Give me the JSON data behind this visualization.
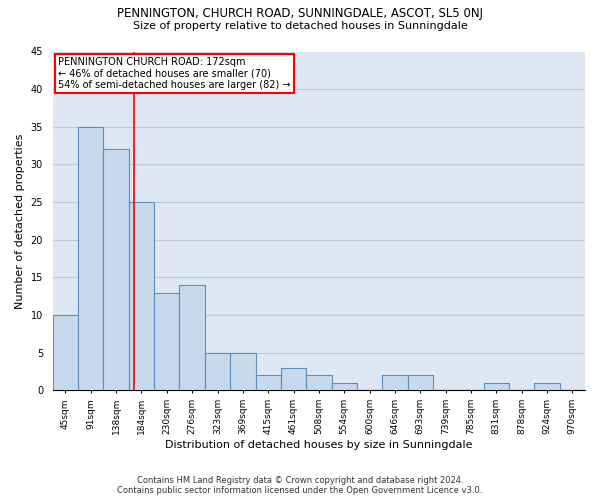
{
  "title": "PENNINGTON, CHURCH ROAD, SUNNINGDALE, ASCOT, SL5 0NJ",
  "subtitle": "Size of property relative to detached houses in Sunningdale",
  "xlabel": "Distribution of detached houses by size in Sunningdale",
  "ylabel": "Number of detached properties",
  "categories": [
    "45sqm",
    "91sqm",
    "138sqm",
    "184sqm",
    "230sqm",
    "276sqm",
    "323sqm",
    "369sqm",
    "415sqm",
    "461sqm",
    "508sqm",
    "554sqm",
    "600sqm",
    "646sqm",
    "693sqm",
    "739sqm",
    "785sqm",
    "831sqm",
    "878sqm",
    "924sqm",
    "970sqm"
  ],
  "values": [
    10,
    35,
    32,
    25,
    13,
    14,
    5,
    5,
    2,
    3,
    2,
    1,
    0,
    2,
    2,
    0,
    0,
    1,
    0,
    1,
    0
  ],
  "bar_color": "#c8d9eb",
  "bar_edge_color": "#5a8fc0",
  "bar_edge_width": 0.8,
  "grid_color": "#c0c8d8",
  "background_color": "#dde8f4",
  "red_line_x": 2.72,
  "annotation_line1": "PENNINGTON CHURCH ROAD: 172sqm",
  "annotation_line2": "← 46% of detached houses are smaller (70)",
  "annotation_line3": "54% of semi-detached houses are larger (82) →",
  "annotation_box_color": "white",
  "annotation_box_edge_color": "red",
  "footer": "Contains HM Land Registry data © Crown copyright and database right 2024.\nContains public sector information licensed under the Open Government Licence v3.0.",
  "ylim": [
    0,
    45
  ],
  "yticks": [
    0,
    5,
    10,
    15,
    20,
    25,
    30,
    35,
    40,
    45
  ],
  "title_fontsize": 8.5,
  "subtitle_fontsize": 8,
  "ylabel_fontsize": 8,
  "xlabel_fontsize": 8,
  "tick_fontsize": 6.5,
  "annotation_fontsize": 7,
  "footer_fontsize": 6
}
